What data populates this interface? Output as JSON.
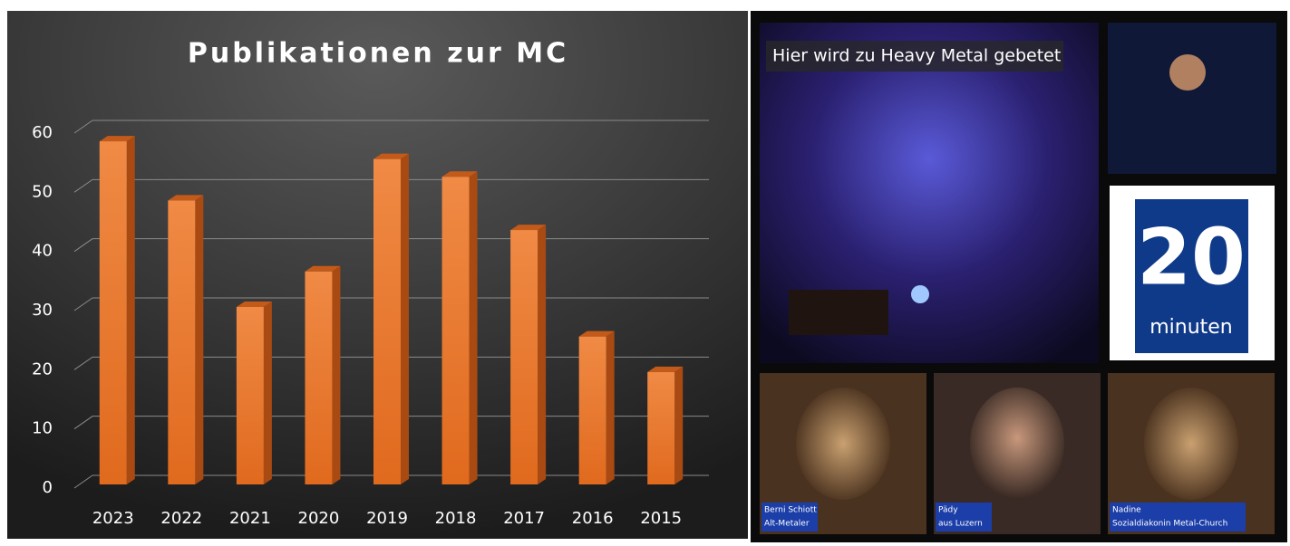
{
  "chart_data": {
    "type": "bar",
    "title": "Publikationen zur MC",
    "categories": [
      "2023",
      "2022",
      "2021",
      "2020",
      "2019",
      "2018",
      "2017",
      "2016",
      "2015"
    ],
    "values": [
      58,
      48,
      30,
      36,
      55,
      52,
      43,
      25,
      19
    ],
    "color": "#e8732a",
    "ylim": [
      0,
      60
    ],
    "yticks": [
      0,
      10,
      20,
      30,
      40,
      50,
      60
    ],
    "grid": true
  },
  "collage": {
    "headline": "Hier wird zu Heavy Metal gebetet",
    "logo": {
      "number": "20",
      "word": "minuten"
    },
    "captions": [
      {
        "name": "Berni Schiott",
        "role": "Alt-Metaler"
      },
      {
        "name": "Pädy",
        "role": "aus Luzern"
      },
      {
        "name": "Nadine",
        "role": "Sozialdiakonin Metal-Church"
      }
    ]
  }
}
